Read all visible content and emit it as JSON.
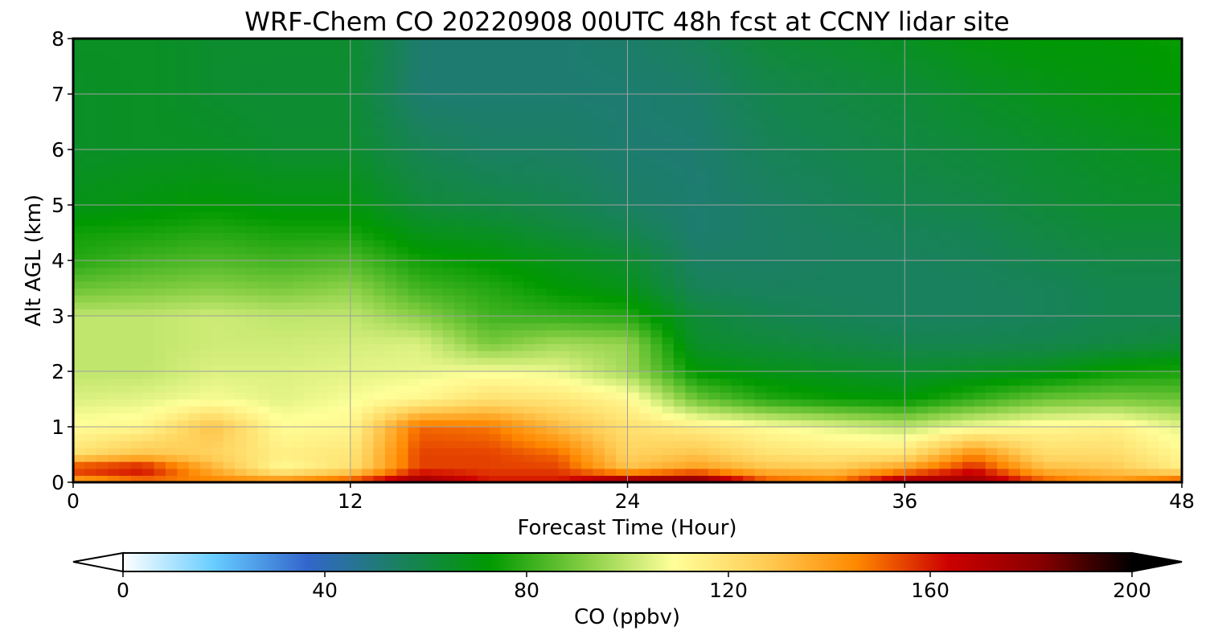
{
  "chart_data": {
    "type": "heatmap",
    "title": "WRF-Chem CO  20220908 00UTC 48h fcst at CCNY lidar site",
    "xlabel": "Forecast Time (Hour)",
    "ylabel": "Alt AGL (km)",
    "xlim": [
      0,
      48
    ],
    "ylim": [
      0,
      8
    ],
    "x_ticks": [
      "0",
      "12",
      "24",
      "36",
      "48"
    ],
    "y_ticks": [
      "0",
      "1",
      "2",
      "3",
      "4",
      "5",
      "6",
      "7",
      "8"
    ],
    "grid": true,
    "colorbar": {
      "label": "CO  (ppbv)",
      "range": [
        0,
        200
      ],
      "ticks": [
        "0",
        "40",
        "80",
        "120",
        "160",
        "200"
      ],
      "extend": "both",
      "colors": [
        "#ffffff",
        "#66ccff",
        "#3366cc",
        "#1a8060",
        "#009900",
        "#80cc40",
        "#ffff99",
        "#ffcc55",
        "#ff8800",
        "#cc0000",
        "#880000",
        "#000000"
      ]
    },
    "time_hours": [
      0,
      3,
      6,
      9,
      12,
      15,
      18,
      21,
      24,
      27,
      30,
      33,
      36,
      39,
      42,
      45,
      48
    ],
    "altitude_km": [
      0.05,
      0.25,
      0.5,
      1.0,
      1.5,
      2.0,
      2.5,
      3.0,
      3.5,
      4.0,
      4.5,
      5.0,
      6.0,
      7.0,
      8.0
    ],
    "co_ppbv": [
      [
        140,
        160,
        120,
        110,
        104,
        100,
        100,
        100,
        88,
        78,
        75,
        68,
        65,
        65,
        66
      ],
      [
        150,
        165,
        130,
        112,
        105,
        100,
        100,
        100,
        90,
        82,
        76,
        70,
        66,
        66,
        66
      ],
      [
        145,
        135,
        125,
        130,
        108,
        104,
        102,
        102,
        92,
        84,
        78,
        72,
        66,
        64,
        64
      ],
      [
        140,
        110,
        115,
        110,
        105,
        104,
        102,
        100,
        90,
        82,
        76,
        70,
        64,
        63,
        64
      ],
      [
        150,
        120,
        118,
        112,
        108,
        105,
        103,
        100,
        93,
        84,
        76,
        70,
        64,
        63,
        64
      ],
      [
        175,
        155,
        155,
        150,
        112,
        106,
        104,
        92,
        82,
        75,
        68,
        62,
        57,
        52,
        52
      ],
      [
        160,
        155,
        155,
        148,
        120,
        108,
        90,
        82,
        78,
        72,
        66,
        60,
        54,
        52,
        52
      ],
      [
        160,
        155,
        150,
        132,
        118,
        106,
        96,
        80,
        72,
        68,
        62,
        58,
        54,
        52,
        52
      ],
      [
        175,
        130,
        125,
        120,
        112,
        96,
        94,
        78,
        68,
        64,
        58,
        54,
        52,
        52,
        53
      ],
      [
        180,
        140,
        130,
        115,
        88,
        72,
        64,
        62,
        56,
        54,
        52,
        52,
        52,
        53,
        56
      ],
      [
        150,
        130,
        120,
        110,
        78,
        68,
        62,
        58,
        55,
        54,
        54,
        54,
        56,
        58,
        62
      ],
      [
        145,
        128,
        118,
        105,
        74,
        66,
        60,
        56,
        55,
        55,
        55,
        56,
        58,
        60,
        64
      ],
      [
        170,
        140,
        120,
        100,
        72,
        64,
        58,
        55,
        55,
        55,
        56,
        58,
        60,
        62,
        66
      ],
      [
        175,
        160,
        145,
        108,
        80,
        66,
        58,
        55,
        55,
        56,
        57,
        59,
        62,
        65,
        70
      ],
      [
        150,
        132,
        122,
        112,
        88,
        68,
        58,
        56,
        56,
        58,
        60,
        62,
        64,
        68,
        72
      ],
      [
        140,
        128,
        122,
        114,
        90,
        74,
        60,
        58,
        58,
        60,
        62,
        64,
        66,
        70,
        72
      ],
      [
        150,
        115,
        112,
        105,
        88,
        76,
        62,
        58,
        58,
        60,
        62,
        64,
        68,
        72,
        74
      ]
    ]
  }
}
